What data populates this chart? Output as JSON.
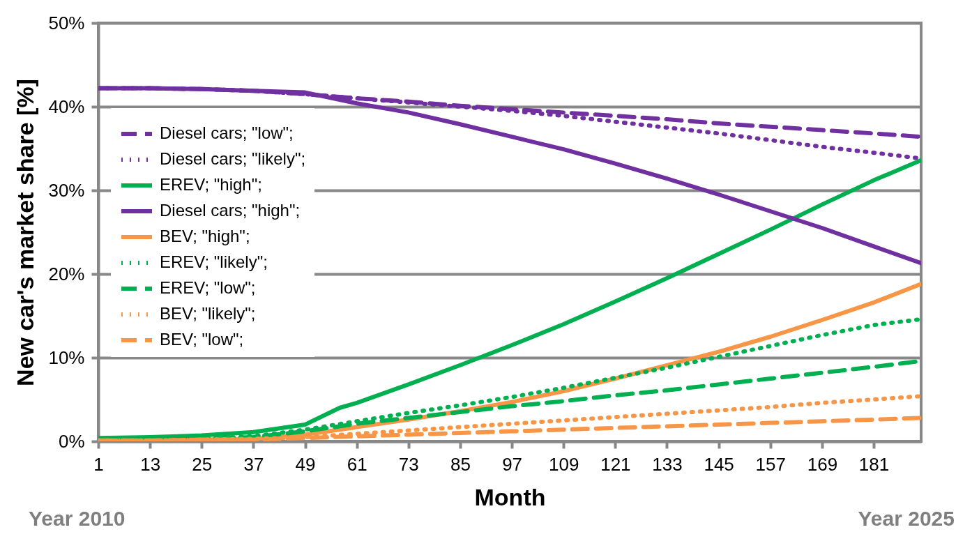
{
  "chart_data": {
    "type": "line",
    "ylabel": "New car's market share [%]",
    "xlabel": "Month",
    "annotations": [
      "Year 2010",
      "Year 2025"
    ],
    "x": [
      1,
      13,
      25,
      37,
      49,
      61,
      73,
      85,
      97,
      109,
      121,
      133,
      145,
      157,
      169,
      181,
      192
    ],
    "xlim": [
      1,
      192
    ],
    "xticks": [
      1,
      13,
      25,
      37,
      49,
      61,
      73,
      85,
      97,
      109,
      121,
      133,
      145,
      157,
      169,
      181
    ],
    "ylim": [
      0,
      50
    ],
    "yticks": [
      {
        "value": 0,
        "label": "0%"
      },
      {
        "value": 10,
        "label": "10%"
      },
      {
        "value": 20,
        "label": "20%"
      },
      {
        "value": 30,
        "label": "30%"
      },
      {
        "value": 40,
        "label": "40%"
      },
      {
        "value": 50,
        "label": "50%"
      }
    ],
    "grid": "y",
    "legend": "left",
    "marker": "none",
    "series": [
      {
        "name": "Diesel cars; \"low\";",
        "color": "#7030a0",
        "line_style": "dashed",
        "values": [
          42.2,
          42.2,
          42.1,
          41.9,
          41.5,
          41.0,
          40.6,
          40.1,
          39.7,
          39.3,
          38.9,
          38.5,
          38.0,
          37.6,
          37.2,
          36.8,
          36.4
        ]
      },
      {
        "name": "Diesel cars; \"likely\";",
        "color": "#7030a0",
        "line_style": "dotted",
        "values": [
          42.2,
          42.2,
          42.1,
          41.9,
          41.5,
          41.0,
          40.5,
          40.0,
          39.5,
          38.9,
          38.2,
          37.5,
          36.8,
          36.0,
          35.2,
          34.5,
          33.8
        ]
      },
      {
        "name": "EREV; \"high\";",
        "color": "#00b050",
        "line_style": "solid",
        "x": [
          1,
          13,
          25,
          37,
          49,
          57,
          61,
          73,
          85,
          97,
          109,
          121,
          133,
          145,
          157,
          169,
          181,
          192
        ],
        "values": [
          0.4,
          0.5,
          0.7,
          1.1,
          2.0,
          4.0,
          4.6,
          6.8,
          9.1,
          11.5,
          14.0,
          16.7,
          19.5,
          22.4,
          25.3,
          28.3,
          31.2,
          33.6
        ]
      },
      {
        "name": "Diesel cars; \"high\";",
        "color": "#7030a0",
        "line_style": "solid",
        "values": [
          42.2,
          42.2,
          42.1,
          41.9,
          41.7,
          40.4,
          39.3,
          37.9,
          36.4,
          34.9,
          33.2,
          31.4,
          29.5,
          27.5,
          25.5,
          23.3,
          21.3
        ]
      },
      {
        "name": "BEV; \"high\";",
        "color": "#f79646",
        "line_style": "solid",
        "values": [
          0.1,
          0.1,
          0.2,
          0.3,
          0.8,
          1.7,
          2.6,
          3.6,
          4.7,
          6.0,
          7.5,
          9.1,
          10.7,
          12.5,
          14.5,
          16.6,
          18.8
        ]
      },
      {
        "name": "EREV; \"likely\";",
        "color": "#00b050",
        "line_style": "dotted",
        "values": [
          0.2,
          0.2,
          0.3,
          0.6,
          1.4,
          2.4,
          3.4,
          4.3,
          5.3,
          6.4,
          7.6,
          8.8,
          10.1,
          11.4,
          12.7,
          13.9,
          14.6
        ]
      },
      {
        "name": "EREV; \"low\";",
        "color": "#00b050",
        "line_style": "dashed",
        "values": [
          0.2,
          0.2,
          0.3,
          0.5,
          1.2,
          2.1,
          2.8,
          3.5,
          4.2,
          4.8,
          5.5,
          6.1,
          6.8,
          7.5,
          8.2,
          8.9,
          9.6
        ]
      },
      {
        "name": "BEV; \"likely\";",
        "color": "#f79646",
        "line_style": "dotted",
        "values": [
          0.1,
          0.1,
          0.2,
          0.3,
          0.5,
          0.9,
          1.3,
          1.7,
          2.1,
          2.5,
          2.9,
          3.3,
          3.7,
          4.1,
          4.6,
          5.0,
          5.4
        ]
      },
      {
        "name": "BEV; \"low\";",
        "color": "#f79646",
        "line_style": "dashed",
        "values": [
          0.1,
          0.1,
          0.2,
          0.2,
          0.4,
          0.6,
          0.8,
          1.0,
          1.2,
          1.4,
          1.6,
          1.8,
          2.0,
          2.2,
          2.4,
          2.6,
          2.8
        ]
      }
    ]
  }
}
